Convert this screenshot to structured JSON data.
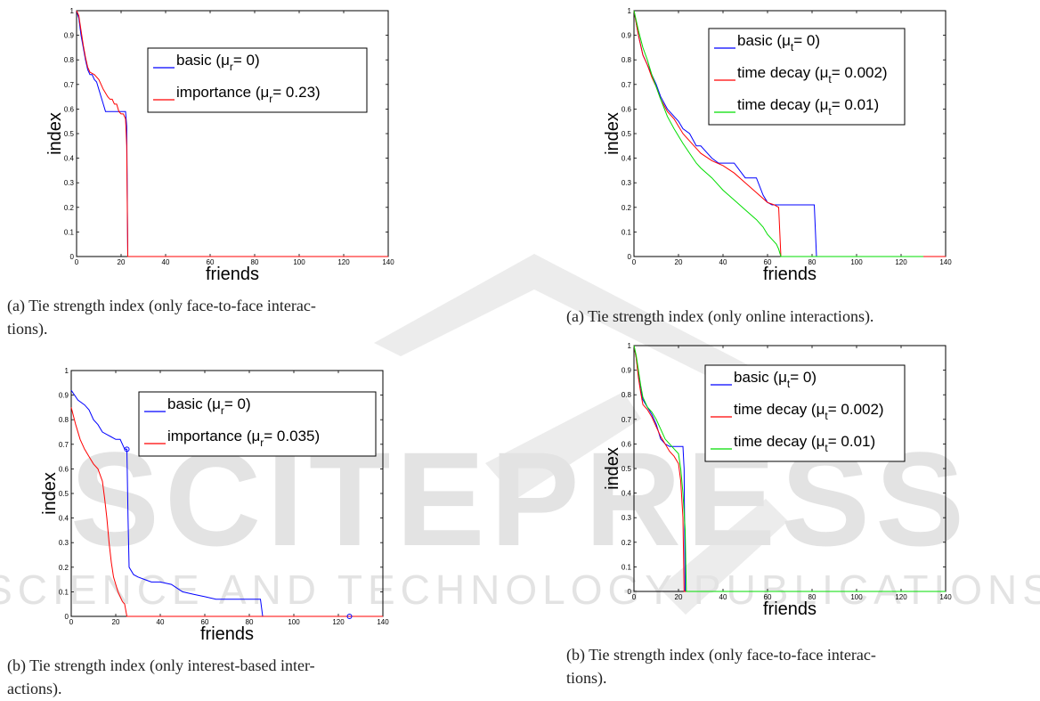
{
  "captions": {
    "a_left": "(a) Tie strength index (only face-to-face interac-\ntions).",
    "b_left": "(b) Tie strength index (only interest-based inter-\nactions).",
    "a_right": "(a) Tie strength index (only online interactions).",
    "b_right": "(b) Tie strength index (only face-to-face interac-\ntions)."
  },
  "watermark": {
    "top": "SCITEPRESS",
    "bottom": "SCIENCE AND TECHNOLOGY PUBLICATIONS"
  },
  "chart_data": [
    {
      "type": "line",
      "xlabel": "friends",
      "ylabel": "index",
      "xlim": [
        0,
        140
      ],
      "ylim": [
        0,
        1
      ],
      "xticks": [
        0,
        20,
        40,
        60,
        80,
        100,
        120,
        140
      ],
      "yticks": [
        0,
        0.1,
        0.2,
        0.3,
        0.4,
        0.5,
        0.6,
        0.7,
        0.8,
        0.9,
        1
      ],
      "legend_position": "top-right",
      "series": [
        {
          "name": "basic (μ",
          "sub": "r",
          "tail": "= 0)",
          "color": "#0000ff",
          "x": [
            0,
            1,
            2,
            3,
            4,
            5,
            6,
            7,
            8,
            9,
            10,
            11,
            12,
            13,
            14,
            16,
            22,
            22.5,
            23,
            140
          ],
          "y": [
            1.0,
            0.97,
            0.9,
            0.85,
            0.8,
            0.76,
            0.74,
            0.74,
            0.72,
            0.71,
            0.68,
            0.65,
            0.62,
            0.59,
            0.59,
            0.59,
            0.59,
            0.53,
            0.0,
            0.0
          ]
        },
        {
          "name": "importance (μ",
          "sub": "r",
          "tail": "= 0.23)",
          "color": "#ff0000",
          "x": [
            0,
            1,
            2,
            3,
            4,
            5,
            6,
            8,
            10,
            12,
            14,
            15,
            16,
            17,
            18,
            19,
            20,
            21,
            22,
            22.5,
            23,
            140
          ],
          "y": [
            1.0,
            0.98,
            0.92,
            0.86,
            0.81,
            0.77,
            0.75,
            0.74,
            0.72,
            0.68,
            0.65,
            0.64,
            0.64,
            0.62,
            0.62,
            0.59,
            0.58,
            0.58,
            0.56,
            0.45,
            0.0,
            0.0
          ]
        }
      ]
    },
    {
      "type": "line",
      "xlabel": "friends",
      "ylabel": "index",
      "xlim": [
        0,
        140
      ],
      "ylim": [
        0,
        1
      ],
      "xticks": [
        0,
        20,
        40,
        60,
        80,
        100,
        120,
        140
      ],
      "yticks": [
        0,
        0.1,
        0.2,
        0.3,
        0.4,
        0.5,
        0.6,
        0.7,
        0.8,
        0.9,
        1
      ],
      "legend_position": "top-right",
      "series": [
        {
          "name": "basic (μ",
          "sub": "r",
          "tail": "= 0)",
          "color": "#0000ff",
          "x": [
            0,
            3,
            6,
            8,
            10,
            12,
            14,
            16,
            18,
            20,
            22,
            24,
            25,
            25.5,
            26,
            28,
            30,
            33,
            36,
            40,
            45,
            50,
            55,
            60,
            65,
            70,
            75,
            80,
            85,
            86,
            140
          ],
          "y": [
            0.92,
            0.88,
            0.86,
            0.84,
            0.8,
            0.78,
            0.75,
            0.74,
            0.73,
            0.72,
            0.72,
            0.68,
            0.68,
            0.4,
            0.2,
            0.17,
            0.16,
            0.15,
            0.14,
            0.14,
            0.13,
            0.1,
            0.09,
            0.08,
            0.07,
            0.07,
            0.07,
            0.07,
            0.07,
            0.0,
            0.0
          ]
        },
        {
          "name": "importance (μ",
          "sub": "r",
          "tail": "= 0.035)",
          "color": "#ff0000",
          "x": [
            0,
            2,
            4,
            6,
            8,
            10,
            12,
            14,
            15,
            16,
            17,
            18,
            19,
            20,
            21,
            22,
            23,
            24,
            25,
            140
          ],
          "y": [
            0.85,
            0.78,
            0.72,
            0.68,
            0.65,
            0.62,
            0.6,
            0.55,
            0.48,
            0.4,
            0.3,
            0.22,
            0.16,
            0.13,
            0.1,
            0.08,
            0.06,
            0.05,
            0.0,
            0.0
          ]
        }
      ],
      "markers": [
        {
          "x": 25,
          "y": 0.68,
          "color": "#0000ff"
        },
        {
          "x": 125,
          "y": 0.0,
          "color": "#0000ff"
        }
      ]
    },
    {
      "type": "line",
      "xlabel": "friends",
      "ylabel": "index",
      "xlim": [
        0,
        140
      ],
      "ylim": [
        0,
        1
      ],
      "xticks": [
        0,
        20,
        40,
        60,
        80,
        100,
        120,
        140
      ],
      "yticks": [
        0,
        0.1,
        0.2,
        0.3,
        0.4,
        0.5,
        0.6,
        0.7,
        0.8,
        0.9,
        1
      ],
      "legend_position": "top-right",
      "series": [
        {
          "name": "basic (μ",
          "sub": "t",
          "tail": "= 0)",
          "color": "#0000ff",
          "x": [
            0,
            2,
            4,
            6,
            8,
            10,
            12,
            15,
            18,
            20,
            22,
            25,
            28,
            30,
            33,
            35,
            38,
            40,
            45,
            50,
            55,
            58,
            60,
            62,
            65,
            70,
            75,
            80,
            81,
            82,
            140
          ],
          "y": [
            1.0,
            0.9,
            0.82,
            0.78,
            0.74,
            0.7,
            0.65,
            0.6,
            0.57,
            0.55,
            0.52,
            0.5,
            0.45,
            0.45,
            0.42,
            0.4,
            0.38,
            0.38,
            0.38,
            0.32,
            0.32,
            0.25,
            0.22,
            0.21,
            0.21,
            0.21,
            0.21,
            0.21,
            0.21,
            0.0,
            0.0
          ]
        },
        {
          "name": "time decay (μ",
          "sub": "t",
          "tail": "= 0.002)",
          "color": "#ff0000",
          "x": [
            0,
            2,
            4,
            6,
            8,
            10,
            12,
            15,
            18,
            20,
            22,
            25,
            28,
            30,
            35,
            40,
            45,
            50,
            55,
            60,
            63,
            65,
            66,
            140
          ],
          "y": [
            1.0,
            0.9,
            0.82,
            0.78,
            0.73,
            0.69,
            0.64,
            0.59,
            0.56,
            0.53,
            0.5,
            0.47,
            0.44,
            0.42,
            0.39,
            0.37,
            0.34,
            0.3,
            0.26,
            0.22,
            0.21,
            0.2,
            0.0,
            0.0
          ]
        },
        {
          "name": "time decay (μ",
          "sub": "t",
          "tail": "= 0.01)",
          "color": "#00dd00",
          "x": [
            0,
            2,
            4,
            6,
            8,
            10,
            12,
            15,
            18,
            20,
            22,
            25,
            28,
            30,
            35,
            40,
            45,
            50,
            55,
            58,
            60,
            62,
            64,
            65,
            66,
            130
          ],
          "y": [
            1.0,
            0.92,
            0.85,
            0.8,
            0.74,
            0.69,
            0.64,
            0.57,
            0.52,
            0.49,
            0.46,
            0.42,
            0.38,
            0.36,
            0.32,
            0.27,
            0.23,
            0.19,
            0.15,
            0.12,
            0.09,
            0.07,
            0.05,
            0.03,
            0.0,
            0.0
          ]
        }
      ]
    },
    {
      "type": "line",
      "xlabel": "friends",
      "ylabel": "index",
      "xlim": [
        0,
        140
      ],
      "ylim": [
        0,
        1
      ],
      "xticks": [
        0,
        20,
        40,
        60,
        80,
        100,
        120,
        140
      ],
      "yticks": [
        0,
        0.1,
        0.2,
        0.3,
        0.4,
        0.5,
        0.6,
        0.7,
        0.8,
        0.9,
        1
      ],
      "legend_position": "top-right",
      "series": [
        {
          "name": "basic (μ",
          "sub": "t",
          "tail": "= 0)",
          "color": "#0000ff",
          "x": [
            0,
            1,
            2,
            3,
            4,
            6,
            8,
            10,
            12,
            14,
            16,
            18,
            20,
            21,
            22,
            22.5,
            23,
            140
          ],
          "y": [
            1.0,
            0.95,
            0.88,
            0.82,
            0.78,
            0.75,
            0.72,
            0.68,
            0.62,
            0.6,
            0.59,
            0.59,
            0.59,
            0.59,
            0.59,
            0.5,
            0.0,
            0.0
          ]
        },
        {
          "name": "time decay (μ",
          "sub": "t",
          "tail": "= 0.002)",
          "color": "#ff0000",
          "x": [
            0,
            1,
            2,
            3,
            4,
            6,
            8,
            10,
            12,
            14,
            16,
            18,
            20,
            21,
            22,
            22.5,
            140
          ],
          "y": [
            1.0,
            0.95,
            0.87,
            0.81,
            0.76,
            0.74,
            0.71,
            0.67,
            0.63,
            0.6,
            0.57,
            0.55,
            0.52,
            0.45,
            0.3,
            0.0,
            0.0
          ]
        },
        {
          "name": "time decay (μ",
          "sub": "t",
          "tail": "= 0.01)",
          "color": "#00dd00",
          "x": [
            0,
            1,
            2,
            3,
            4,
            6,
            8,
            10,
            12,
            14,
            16,
            18,
            20,
            21,
            22,
            23,
            23.5,
            140
          ],
          "y": [
            1.0,
            0.96,
            0.9,
            0.84,
            0.79,
            0.75,
            0.73,
            0.7,
            0.66,
            0.62,
            0.6,
            0.58,
            0.56,
            0.5,
            0.4,
            0.25,
            0.0,
            0.0
          ]
        }
      ]
    }
  ]
}
